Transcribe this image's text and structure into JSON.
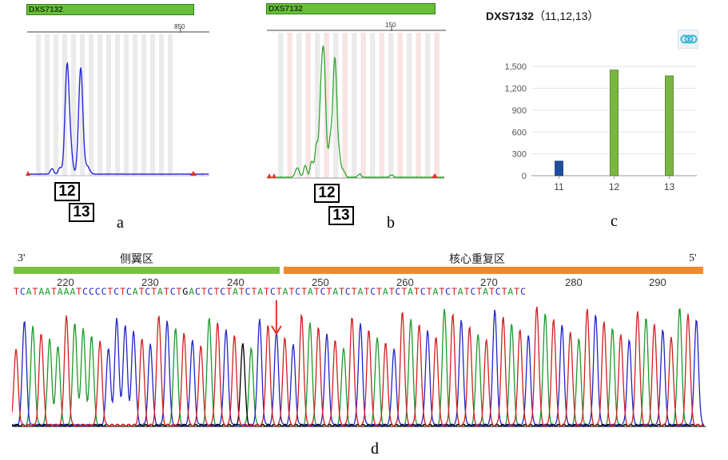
{
  "panels": {
    "a": {
      "letter": "a",
      "locus": "DXS7132",
      "scale_tick": "850",
      "allele_labels": [
        "12",
        "13"
      ]
    },
    "b": {
      "letter": "b",
      "locus": "DXS7132",
      "scale_tick": "150",
      "allele_labels": [
        "12",
        "13"
      ]
    },
    "c": {
      "letter": "c",
      "title": "DXS7132",
      "subtitle": "（11,12,13）",
      "icon": "openlink-icon"
    },
    "d": {
      "letter": "d",
      "left_end": "3'",
      "right_end": "5'",
      "flank_label": "侧翼区",
      "core_label": "核心重复区",
      "flank_color": "#7ac142",
      "core_color": "#f08a2c",
      "positions": [
        "220",
        "230",
        "240",
        "250",
        "260",
        "270",
        "280",
        "290"
      ],
      "sequence": "TCATAATAAATCCCCTCTCATCTATCTGACTCTCTATCTATCTATCTATCTATCTATCTATCTATCTATCTATCTATCTATC"
    }
  },
  "chart_data": [
    {
      "type": "line",
      "panel": "a",
      "title": "DXS7132",
      "color": "#2a2ad6",
      "peaks": [
        {
          "allele": "12",
          "relative_height": 0.85
        },
        {
          "allele": "13",
          "relative_height": 0.7
        }
      ]
    },
    {
      "type": "line",
      "panel": "b",
      "title": "DXS7132",
      "color": "#2ea82e",
      "peaks": [
        {
          "allele": "12",
          "relative_height": 1.0
        },
        {
          "allele": "13",
          "relative_height": 1.0
        }
      ]
    },
    {
      "type": "bar",
      "panel": "c",
      "title": "DXS7132",
      "categories": [
        "11",
        "12",
        "13"
      ],
      "values": [
        200,
        1450,
        1370
      ],
      "colors": [
        "#1f4e9e",
        "#7ab640",
        "#7ab640"
      ],
      "yticks": [
        "0",
        "300",
        "600",
        "900",
        "1,200",
        "1,500"
      ],
      "ylim": [
        0,
        1600
      ],
      "grid": true
    },
    {
      "type": "line",
      "panel": "d",
      "title": "",
      "base_colors": {
        "A": "#1c9a2a",
        "C": "#2323c8",
        "G": "#000000",
        "T": "#d21f1f"
      },
      "arrow_base_index": 31
    }
  ]
}
